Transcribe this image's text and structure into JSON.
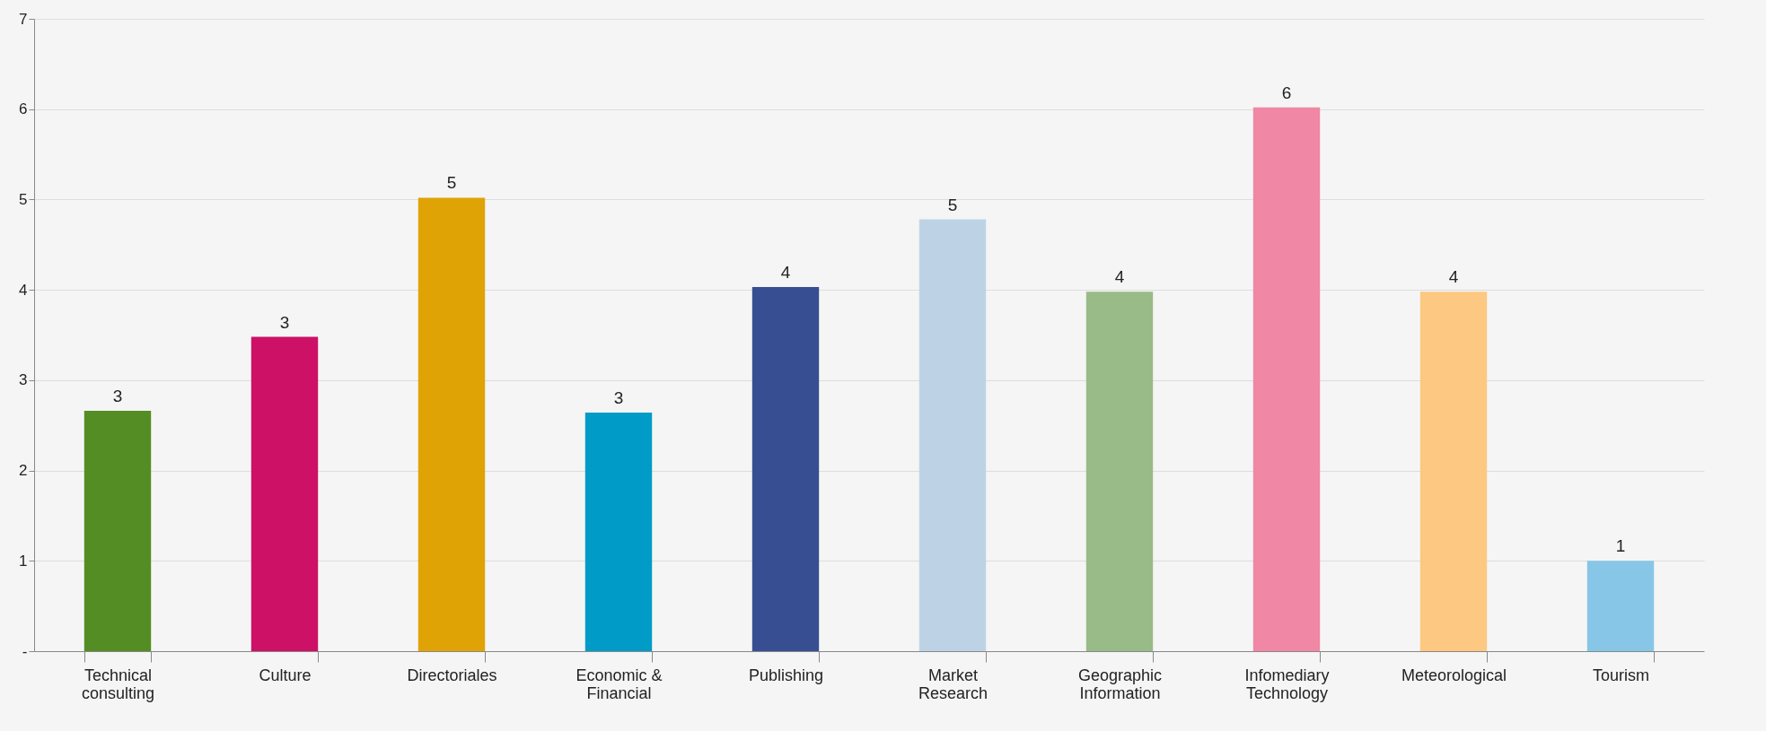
{
  "chart_data": {
    "type": "bar",
    "categories": [
      "Technical consulting",
      "Culture",
      "Directoriales",
      "Economic & Financial",
      "Publishing",
      "Market Research",
      "Geographic Information",
      "Infomediary Technology",
      "Meteorological",
      "Tourism"
    ],
    "values": [
      2.66,
      3.48,
      5.02,
      2.64,
      4.03,
      4.78,
      3.98,
      6.02,
      3.98,
      1.0
    ],
    "value_labels": [
      "3",
      "3",
      "5",
      "3",
      "4",
      "5",
      "4",
      "6",
      "4",
      "1"
    ],
    "colors": [
      "#548d23",
      "#cc1166",
      "#e0a306",
      "#009bc6",
      "#374f92",
      "#bdd3e5",
      "#99bb87",
      "#ef87a5",
      "#fdc882",
      "#87c6e6"
    ],
    "ylim": [
      0,
      7
    ],
    "yticks": [
      {
        "value": 0,
        "label": "-"
      },
      1,
      2,
      3,
      4,
      5,
      6,
      7
    ],
    "grid": "y",
    "legend": false
  }
}
